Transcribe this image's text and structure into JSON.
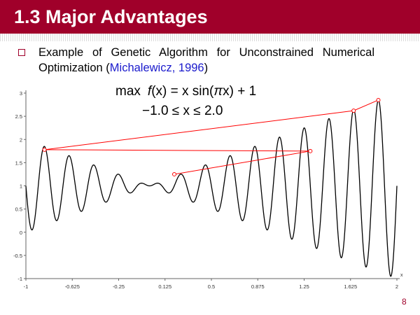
{
  "slide": {
    "title": "1.3 Major Advantages",
    "bullet_line1": "Example of Genetic Algorithm for Unconstrained Numerical",
    "bullet_line2_prefix": "Optimization  (",
    "citation": "Michalewicz, 1996",
    "bullet_line2_suffix": ")",
    "page_number": "8"
  },
  "colors": {
    "title_bar": "#a0002a",
    "curve": "#000000",
    "ga_lines": "#ff0000",
    "citation": "#1a1acc"
  },
  "chart_data": {
    "type": "line",
    "title": "",
    "xlabel": "x",
    "ylabel": "",
    "xlim": [
      -1,
      2
    ],
    "ylim": [
      -1,
      3
    ],
    "x_ticks": [
      "-1",
      "-0.625",
      "-0.25",
      "0.125",
      "0.5",
      "0.875",
      "1.25",
      "1.625",
      "2"
    ],
    "y_ticks": [
      "-1",
      "-0.5",
      "0",
      "0.5",
      "1",
      "1.5",
      "2",
      "2.5",
      "3"
    ],
    "grid": false,
    "equation_line1_parts": [
      "max",
      "f",
      "(x) = x sin(",
      "π",
      "x) + 1"
    ],
    "equation_line2": "−1.0 ≤ x ≤ 2.0",
    "function": "f(x) = x sin(10πx) + 1",
    "ga_points": [
      {
        "x": -0.85,
        "y": 1.78
      },
      {
        "x": 1.3,
        "y": 1.75
      },
      {
        "x": 0.2,
        "y": 1.25
      },
      {
        "x": 1.65,
        "y": 2.62
      },
      {
        "x": 1.85,
        "y": 2.85
      }
    ],
    "ga_segments": [
      [
        0,
        1
      ],
      [
        0,
        3
      ],
      [
        2,
        1
      ],
      [
        3,
        4
      ]
    ]
  }
}
